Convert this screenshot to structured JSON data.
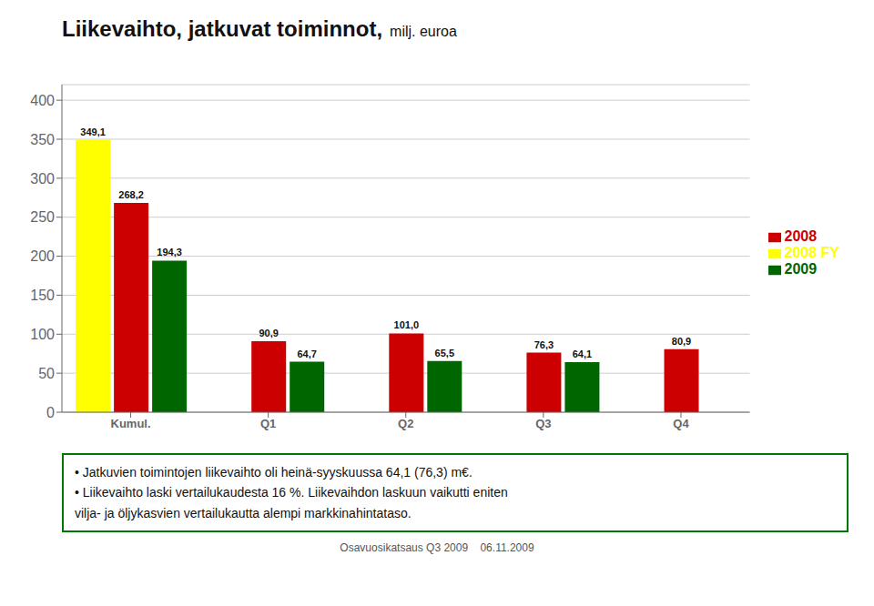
{
  "chart_data": {
    "type": "bar",
    "title": "Liikevaihto, jatkuvat toiminnot,",
    "subtitle": "milj. euroa",
    "categories": [
      "Kumul.",
      "Q1",
      "Q2",
      "Q3",
      "Q4"
    ],
    "series": [
      {
        "name": "2008 FY",
        "color": "#FFFF00",
        "values": [
          349.1,
          null,
          null,
          null,
          null
        ],
        "value_labels": [
          "349,1",
          null,
          null,
          null,
          null
        ]
      },
      {
        "name": "2008",
        "color": "#CC0000",
        "values": [
          268.2,
          90.9,
          101.0,
          76.3,
          80.9
        ],
        "value_labels": [
          "268,2",
          "90,9",
          "101,0",
          "76,3",
          "80,9"
        ]
      },
      {
        "name": "2009",
        "color": "#006600",
        "values": [
          194.3,
          64.7,
          65.5,
          64.1,
          null
        ],
        "value_labels": [
          "194,3",
          "64,7",
          "65,5",
          "64,1",
          null
        ]
      }
    ],
    "ylim": [
      0,
      420
    ],
    "yticks": [
      0,
      50,
      100,
      150,
      200,
      250,
      300,
      350,
      400
    ],
    "grid": true,
    "legend": "right",
    "data_labels": true,
    "annotations": {
      "footnote": [
        "• Jatkuvien toimintojen liikevaihto oli heinä-syyskuussa 64,1 (76,3) m€.",
        "• Liikevaihto laski vertailukaudesta 16 %. Liikevaihdon laskuun vaikutti eniten",
        "vilja- ja öljykasvien vertailukautta alempi markkinahintataso."
      ],
      "footer": "Osavuosikatsaus Q3 2009    06.11.2009"
    }
  }
}
